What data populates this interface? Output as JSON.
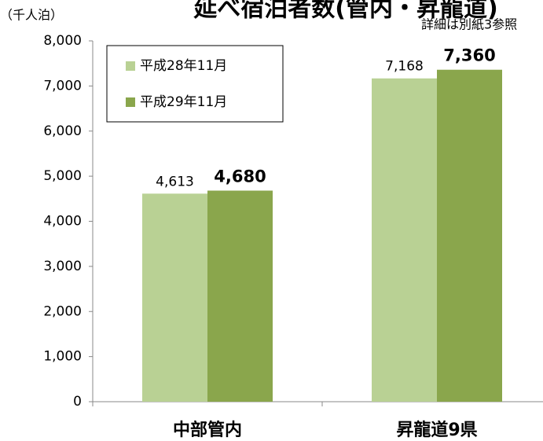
{
  "chart_data": {
    "type": "bar",
    "title": "延べ宿泊者数(管内・昇龍道)",
    "note": "詳細は別紙3参照",
    "y_label": "（千人泊）",
    "categories": [
      "中部管内",
      "昇龍道9県"
    ],
    "series": [
      {
        "name": "平成28年11月",
        "color": "#b9d194",
        "values": [
          4613,
          7168
        ],
        "value_labels": [
          "4,613",
          "7,168"
        ]
      },
      {
        "name": "平成29年11月",
        "color": "#8aa64c",
        "values": [
          4680,
          7360
        ],
        "value_labels": [
          "4,680",
          "7,360"
        ]
      }
    ],
    "ylim": [
      0,
      8000
    ],
    "yticks": [
      0,
      {
        "value": 1000,
        "label": "1,000"
      },
      {
        "value": 2000,
        "label": "2,000"
      },
      {
        "value": 3000,
        "label": "3,000"
      },
      {
        "value": 4000,
        "label": "4,000"
      },
      {
        "value": 5000,
        "label": "5,000"
      },
      {
        "value": 6000,
        "label": "6,000"
      },
      {
        "value": 7000,
        "label": "7,000"
      },
      {
        "value": 8000,
        "label": "8,000"
      }
    ],
    "legend": "upper left"
  }
}
